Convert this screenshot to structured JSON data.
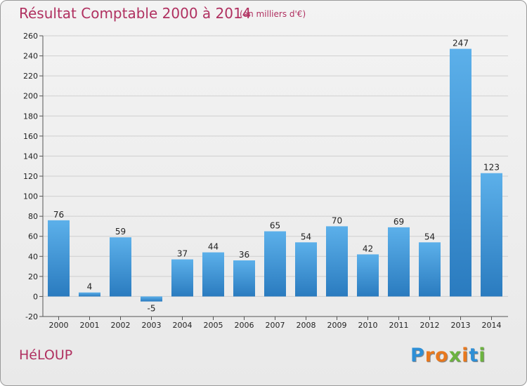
{
  "title": "Résultat Comptable 2000 à 2014",
  "unit": "(en milliers d'€)",
  "place": "HéLOUP",
  "logo": {
    "letters": [
      "P",
      "r",
      "o",
      "x",
      "i",
      "t",
      "i"
    ],
    "colors": [
      "#2e8fd6",
      "#e8781e",
      "#e8781e",
      "#6cb33f",
      "#e8781e",
      "#2e8fd6",
      "#6cb33f"
    ]
  },
  "colors": {
    "title": "#b03060",
    "bar_light": "#5cb0ea",
    "bar_dark": "#2a7bbf",
    "grid": "#cfcfcf"
  },
  "chart_data": {
    "type": "bar",
    "categories": [
      "2000",
      "2001",
      "2002",
      "2003",
      "2004",
      "2005",
      "2006",
      "2007",
      "2008",
      "2009",
      "2010",
      "2011",
      "2012",
      "2013",
      "2014"
    ],
    "values": [
      76,
      4,
      59,
      -5,
      37,
      44,
      36,
      65,
      54,
      70,
      42,
      69,
      54,
      247,
      123
    ],
    "ylim": [
      -20,
      260
    ],
    "yticks": [
      -20,
      0,
      20,
      40,
      60,
      80,
      100,
      120,
      140,
      160,
      180,
      200,
      220,
      240,
      260
    ],
    "grid": true
  }
}
